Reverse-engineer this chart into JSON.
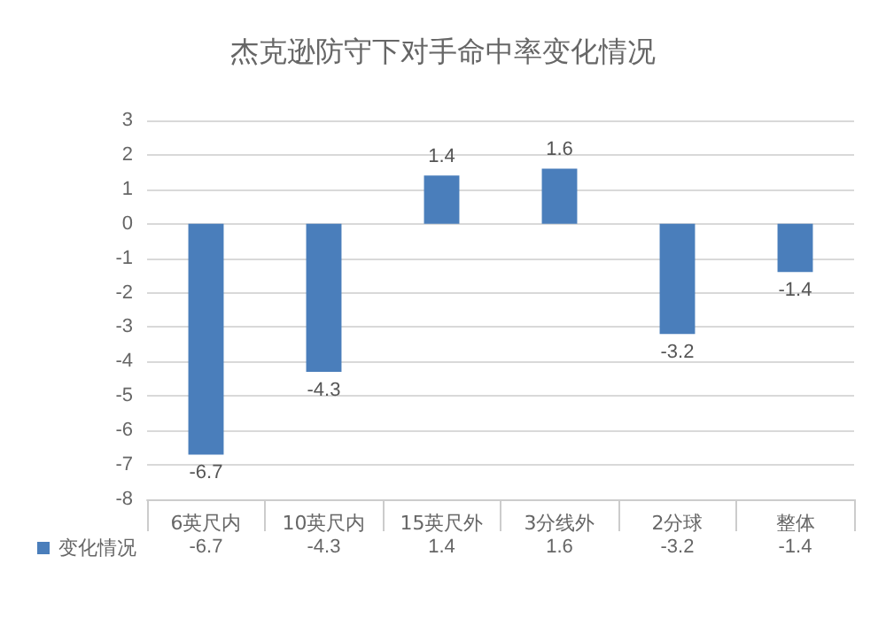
{
  "chart_data": {
    "type": "bar",
    "title": "杰克逊防守下对手命中率变化情况",
    "categories": [
      "6英尺内",
      "10英尺内",
      "15英尺外",
      "3分线外",
      "2分球",
      "整体"
    ],
    "series": [
      {
        "name": "变化情况",
        "color": "#4a7ebb",
        "values": [
          -6.7,
          -4.3,
          1.4,
          1.6,
          -3.2,
          -1.4
        ]
      }
    ],
    "ylim": [
      -8,
      3
    ],
    "yticks": [
      -8,
      -7,
      -6,
      -5,
      -4,
      -3,
      -2,
      -1,
      0,
      1,
      2,
      3
    ],
    "grid": "y",
    "legend": "bottom left",
    "data_labels": true,
    "annotations": [
      "-6.7",
      "-4.3",
      "1.4",
      "1.6",
      "-3.2",
      "-1.4"
    ]
  }
}
